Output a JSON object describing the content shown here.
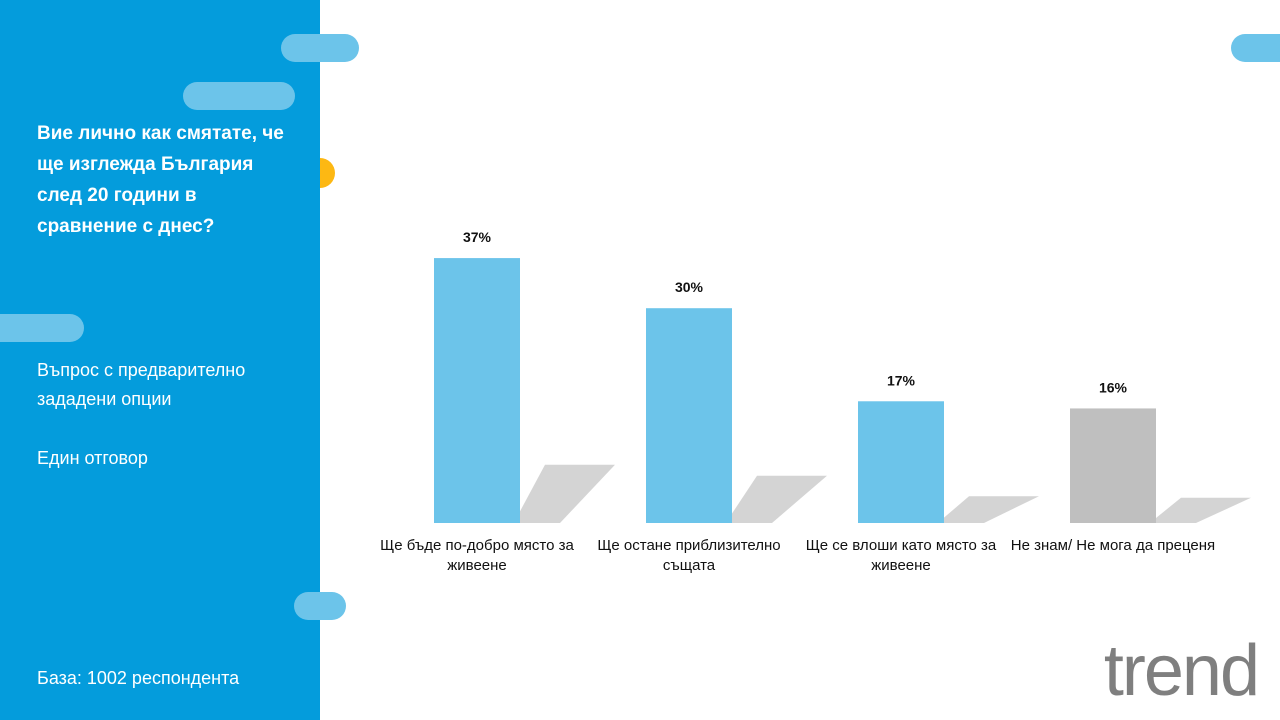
{
  "sidebar": {
    "question": "Вие лично как смятате, че ще изглежда България след 20 години в сравнение с днес?",
    "notes": [
      "Въпрос с предварително зададени опции",
      "Един отговор"
    ],
    "base": "База:  1002 респондента"
  },
  "logo": "trend",
  "chart_data": {
    "type": "bar",
    "categories": [
      "Ще бъде по-добро място за живеене",
      "Ще остане приблизително същата",
      "Ще се влоши като място за живеене",
      "Не знам/ Не мога да преценя"
    ],
    "values": [
      37,
      30,
      17,
      16
    ],
    "value_labels": [
      "37%",
      "30%",
      "17%",
      "16%"
    ],
    "colors": [
      "#6cc4ea",
      "#6cc4ea",
      "#6cc4ea",
      "#bfbfbf"
    ]
  }
}
